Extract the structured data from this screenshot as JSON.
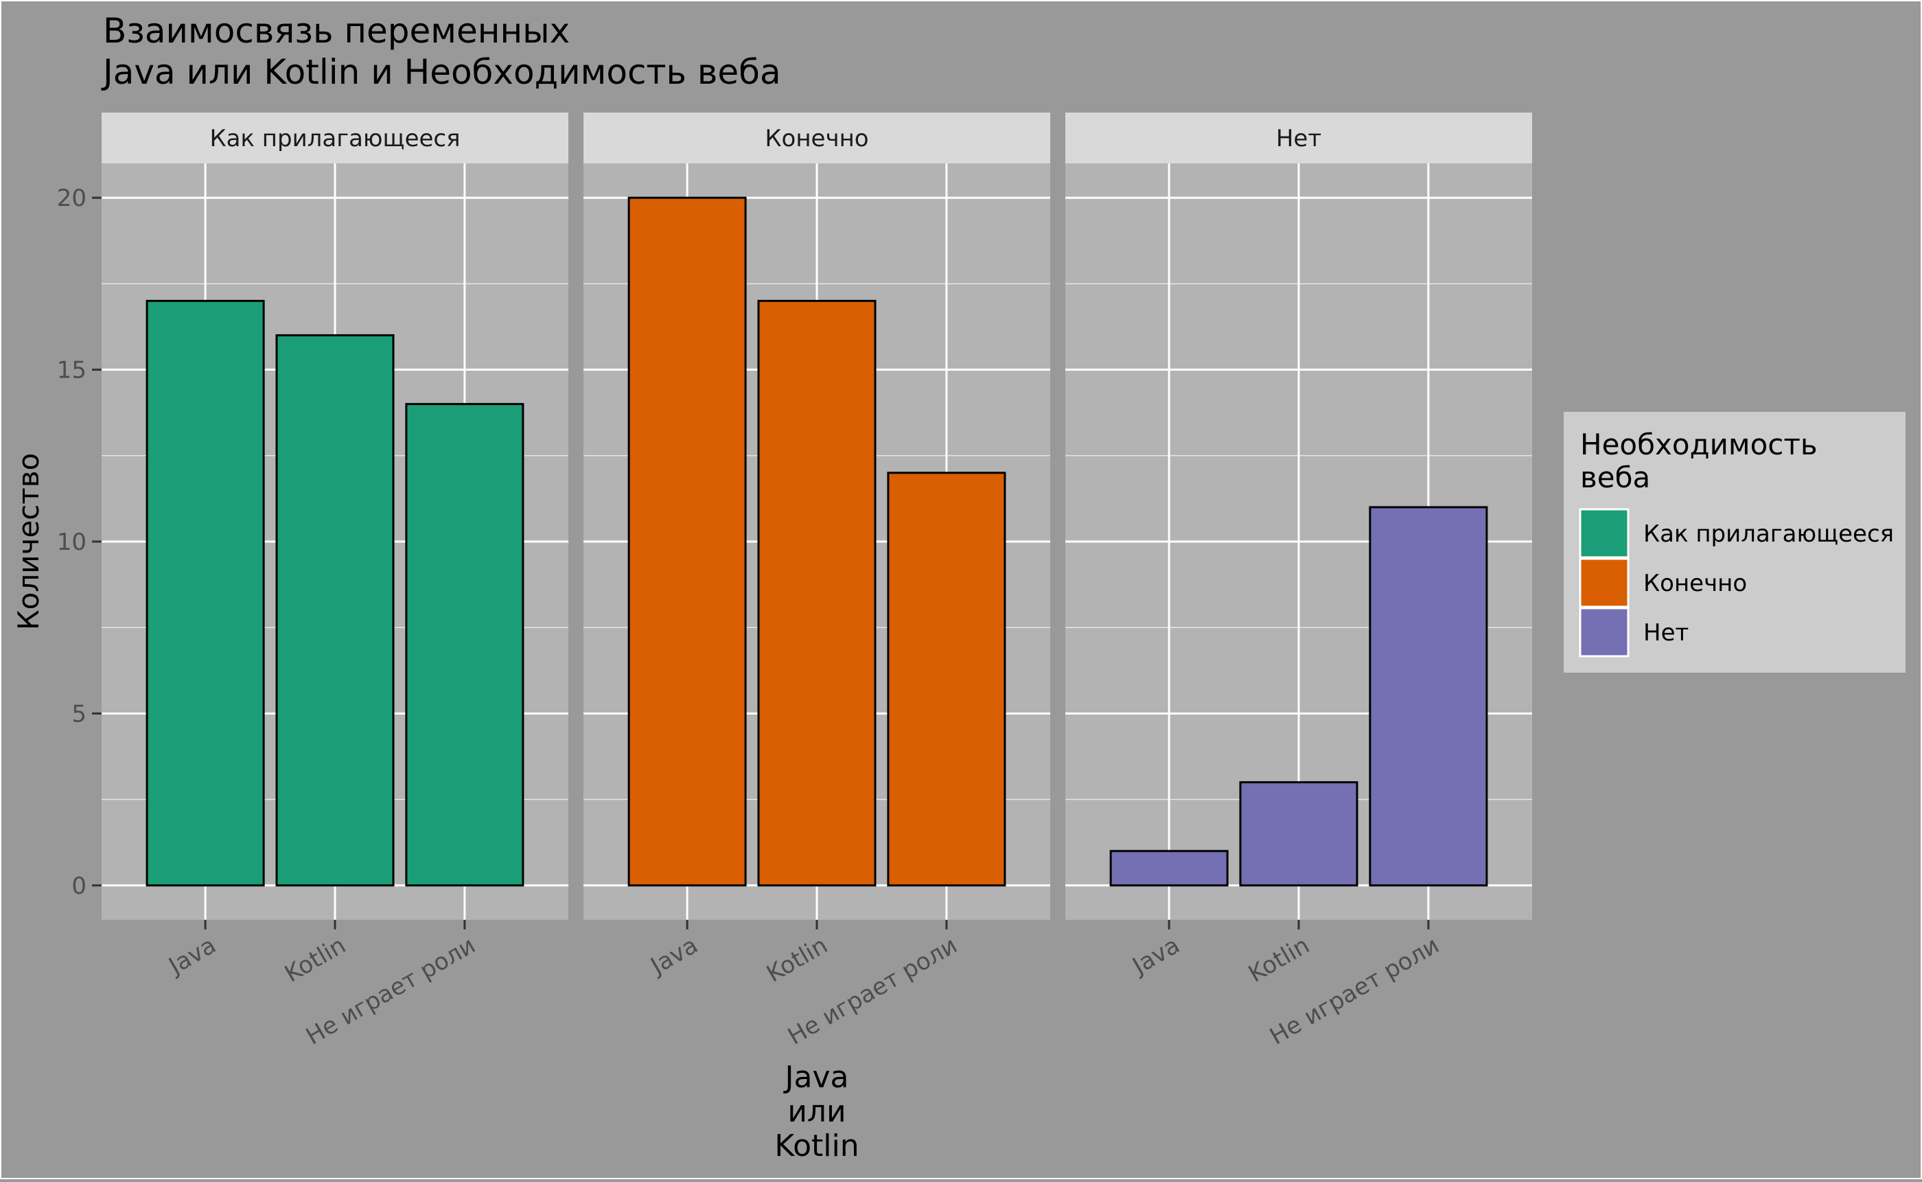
{
  "chart_data": {
    "type": "bar",
    "title": "Взаимосвязь переменных\n Java или Kotlin и Необходимость веба",
    "xlabel": "Java\nили\nKotlin",
    "ylabel": "Количество",
    "ylim": [
      -1,
      21
    ],
    "yticks": [
      0,
      5,
      10,
      15,
      20
    ],
    "categories": [
      "Java",
      "Kotlin",
      "Не играет роли"
    ],
    "facets": [
      "Как прилагающееся",
      "Конечно",
      "Нет"
    ],
    "series": [
      {
        "name": "Как прилагающееся",
        "color": "#1B9E77",
        "values": [
          17,
          16,
          14
        ]
      },
      {
        "name": "Конечно",
        "color": "#D95F02",
        "values": [
          20,
          17,
          12
        ]
      },
      {
        "name": "Нет",
        "color": "#7570B3",
        "values": [
          1,
          3,
          11
        ]
      }
    ],
    "legend": {
      "title": "Необходимость\nвеба",
      "position": "right",
      "items": [
        "Как прилагающееся",
        "Конечно",
        "Нет"
      ]
    },
    "grid": true
  }
}
